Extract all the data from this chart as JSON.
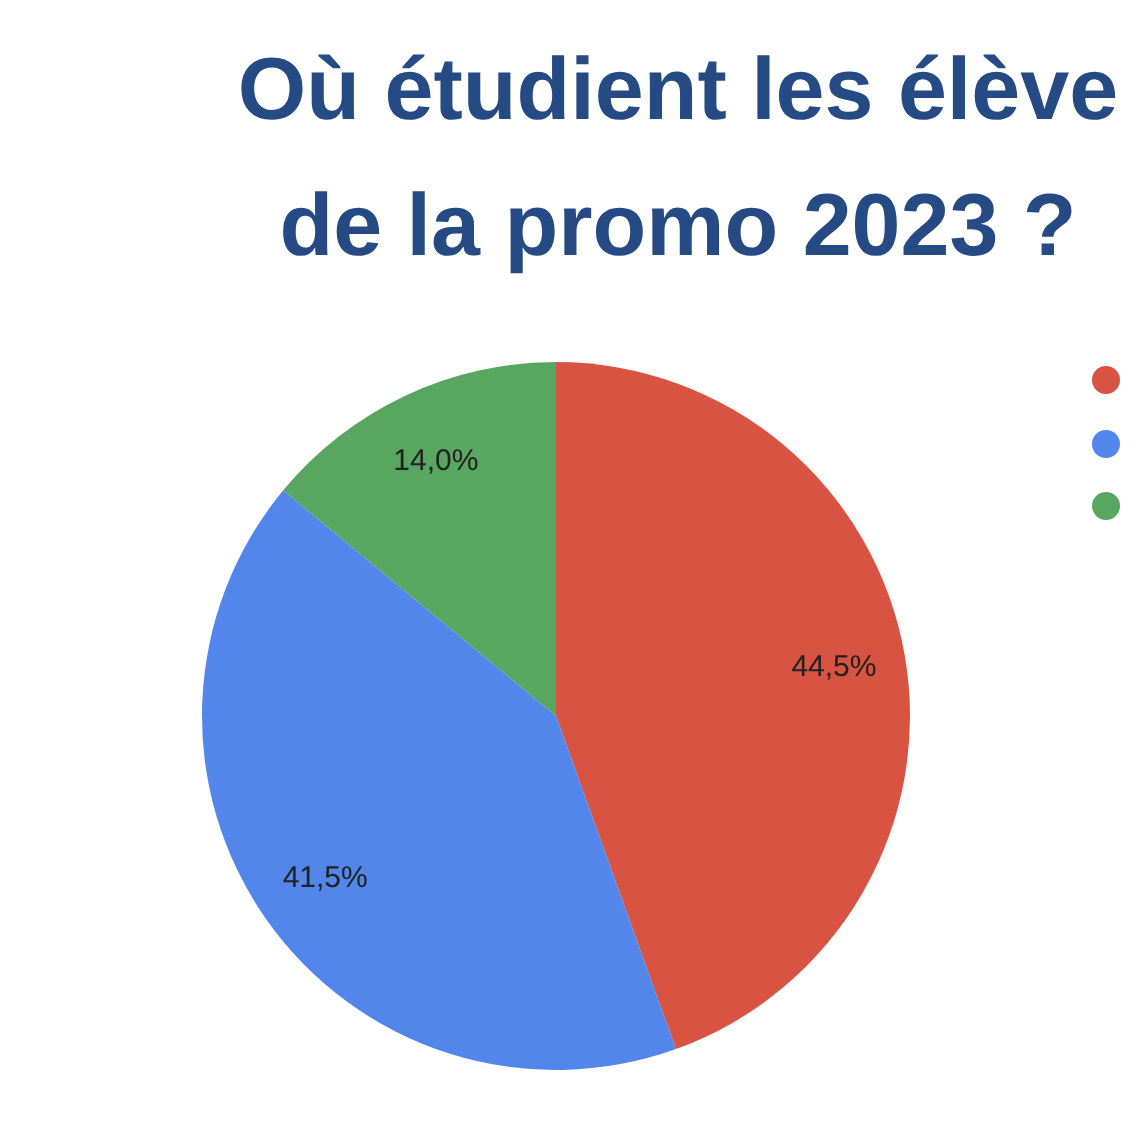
{
  "chart_data": {
    "type": "pie",
    "title": "Où étudient les élève\nde la promo 2023 ?",
    "categories": [
      null,
      null,
      null
    ],
    "values": [
      44.5,
      41.5,
      14.0
    ],
    "colors": [
      "#d95343",
      "#5286ea",
      "#58a65f"
    ],
    "value_labels": [
      "44,5%",
      "41,5%",
      "14,0%"
    ]
  }
}
